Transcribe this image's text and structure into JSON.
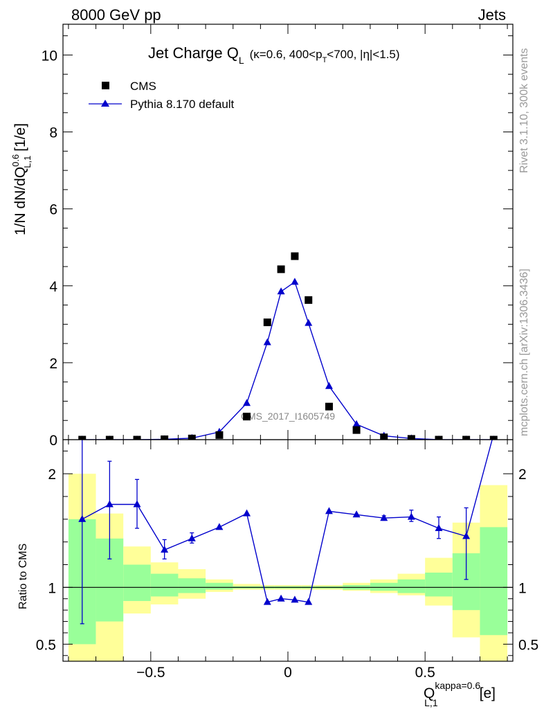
{
  "header": {
    "left": "8000 GeV pp",
    "right": "Jets"
  },
  "side_labels": {
    "rivet": "Rivet 3.1.10,  300k events",
    "mcplots": "mcplots.cern.ch [arXiv:1306.3436]"
  },
  "watermark": "CMS_2017_I1605749",
  "colors": {
    "cms": "#000000",
    "pythia": "#0000cc",
    "band_inner": "#99ff99",
    "band_outer": "#ffff99"
  },
  "chart_data": [
    {
      "type": "scatter",
      "title": {
        "main": "Jet Charge Q",
        "main_sub": "L",
        "detail_a": "(κ=0.6, 400<p",
        "detail_sub": "T",
        "detail_b": "<700, |η|<1.5)"
      },
      "ylabel": {
        "a": "1/N dN/dQ",
        "sup": "0.6",
        "sub": "L,1",
        "b": " [1/e]"
      },
      "xlim": [
        -0.82,
        0.82
      ],
      "ylim": [
        0,
        10.8
      ],
      "yticks": [
        0,
        2,
        4,
        6,
        8,
        10
      ],
      "ytick_labels": [
        "0",
        "2",
        "4",
        "6",
        "8",
        "10"
      ],
      "legend": {
        "placement": "top-left",
        "entries": [
          "CMS",
          "Pythia 8.170 default"
        ]
      },
      "series": [
        {
          "name": "CMS",
          "marker": "square",
          "x": [
            -0.75,
            -0.65,
            -0.55,
            -0.45,
            -0.35,
            -0.25,
            -0.15,
            -0.075,
            -0.025,
            0.025,
            0.075,
            0.15,
            0.25,
            0.35,
            0.45,
            0.55,
            0.65,
            0.75
          ],
          "y": [
            0.0,
            0.0,
            0.0,
            0.01,
            0.03,
            0.12,
            0.6,
            3.05,
            4.43,
            4.77,
            3.63,
            0.86,
            0.25,
            0.06,
            0.02,
            0.0,
            0.0,
            0.0
          ]
        },
        {
          "name": "Pythia 8.170 default",
          "marker": "triangle",
          "x": [
            -0.75,
            -0.65,
            -0.55,
            -0.45,
            -0.35,
            -0.25,
            -0.15,
            -0.075,
            -0.025,
            0.025,
            0.075,
            0.15,
            0.25,
            0.35,
            0.45,
            0.55,
            0.65,
            0.75
          ],
          "y": [
            0.0,
            0.0,
            0.0,
            0.01,
            0.04,
            0.2,
            0.95,
            2.53,
            3.85,
            4.1,
            3.03,
            1.39,
            0.4,
            0.1,
            0.03,
            0.0,
            0.0,
            0.0
          ]
        }
      ]
    },
    {
      "type": "scatter",
      "ylabel": "Ratio to CMS",
      "xlabel": {
        "a": "Q",
        "sup": "kappa=0.6",
        "sub": "L,1",
        "b": "[e]"
      },
      "xlim": [
        -0.82,
        0.82
      ],
      "ylim": [
        0.35,
        2.3
      ],
      "yticks": [
        0.5,
        1,
        2
      ],
      "ytick_labels": [
        "0.5",
        "1",
        "2"
      ],
      "xticks": [
        -0.5,
        0,
        0.5
      ],
      "xtick_labels": [
        "−0.5",
        "0",
        "0.5"
      ],
      "bands": {
        "edges": [
          -0.8,
          -0.7,
          -0.6,
          -0.5,
          -0.4,
          -0.3,
          -0.2,
          -0.1,
          -0.05,
          0.0,
          0.05,
          0.1,
          0.2,
          0.3,
          0.4,
          0.5,
          0.6,
          0.7,
          0.8
        ],
        "inner_lo": [
          0.5,
          0.7,
          0.88,
          0.92,
          0.95,
          0.98,
          0.99,
          0.99,
          0.99,
          0.99,
          0.99,
          0.99,
          0.98,
          0.97,
          0.95,
          0.92,
          0.8,
          0.58
        ],
        "inner_hi": [
          1.6,
          1.43,
          1.2,
          1.12,
          1.08,
          1.04,
          1.01,
          1.01,
          1.01,
          1.01,
          1.01,
          1.01,
          1.02,
          1.04,
          1.07,
          1.13,
          1.3,
          1.53
        ],
        "outer_lo": [
          0.35,
          0.35,
          0.77,
          0.85,
          0.9,
          0.96,
          0.98,
          0.98,
          0.98,
          0.98,
          0.98,
          0.98,
          0.97,
          0.95,
          0.93,
          0.84,
          0.56,
          0.35
        ],
        "outer_hi": [
          2.0,
          1.65,
          1.36,
          1.22,
          1.16,
          1.07,
          1.03,
          1.02,
          1.02,
          1.02,
          1.02,
          1.02,
          1.04,
          1.07,
          1.12,
          1.26,
          1.57,
          1.9
        ]
      },
      "series": [
        {
          "name": "Pythia 8.170 default",
          "x": [
            -0.75,
            -0.65,
            -0.55,
            -0.45,
            -0.35,
            -0.25,
            -0.15,
            -0.075,
            -0.025,
            0.025,
            0.075,
            0.15,
            0.25,
            0.35,
            0.45,
            0.55,
            0.65,
            0.75
          ],
          "y": [
            1.6,
            1.73,
            1.73,
            1.33,
            1.43,
            1.53,
            1.65,
            0.87,
            0.9,
            0.89,
            0.87,
            1.67,
            1.64,
            1.61,
            1.62,
            1.52,
            1.45,
            2.35
          ],
          "err_lo": [
            0.92,
            0.48,
            0.21,
            0.08,
            0.04,
            0,
            0,
            0,
            0,
            0,
            0,
            0,
            0,
            0.02,
            0.04,
            0.09,
            0.38,
            0
          ],
          "err_hi": [
            0.8,
            0.38,
            0.22,
            0.09,
            0.05,
            0,
            0,
            0,
            0,
            0,
            0,
            0,
            0,
            0.02,
            0.06,
            0.1,
            0.25,
            0
          ]
        }
      ]
    }
  ]
}
